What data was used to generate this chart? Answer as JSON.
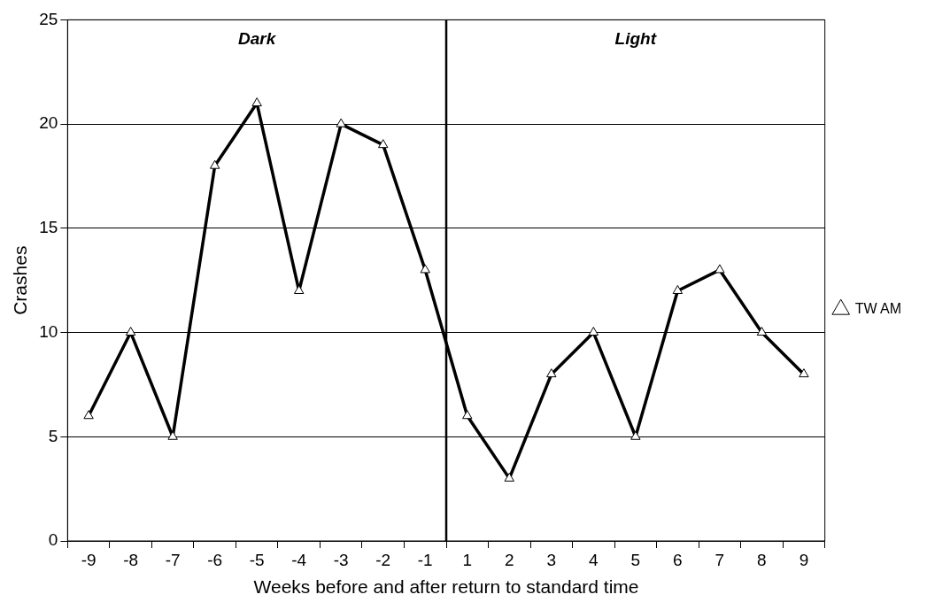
{
  "chart_data": {
    "type": "line",
    "xlabel": "Weeks before and after return to standard time",
    "ylabel": "Crashes",
    "categories": [
      "-9",
      "-8",
      "-7",
      "-6",
      "-5",
      "-4",
      "-3",
      "-2",
      "-1",
      "1",
      "2",
      "3",
      "4",
      "5",
      "6",
      "7",
      "8",
      "9"
    ],
    "series": [
      {
        "name": "TW AM",
        "color": "#000000",
        "values": [
          6,
          10,
          5,
          18,
          21,
          12,
          20,
          19,
          13,
          6,
          3,
          8,
          10,
          5,
          12,
          13,
          10,
          8
        ]
      }
    ],
    "ylim": [
      0,
      25
    ],
    "yticks": [
      0,
      5,
      10,
      15,
      20,
      25
    ],
    "grid": "y",
    "legend": "right",
    "marker": "triangle",
    "line_style": "solid",
    "ref_lines": [
      {
        "axis": "x",
        "value": "1",
        "color": "#000000"
      }
    ],
    "annotations": [
      "Dark",
      "Light"
    ]
  }
}
